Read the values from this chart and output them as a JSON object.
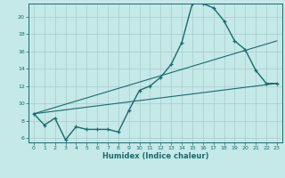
{
  "xlabel": "Humidex (Indice chaleur)",
  "bg_color": "#c5e8e8",
  "grid_color": "#a8cccc",
  "line_color": "#1a6b6b",
  "x_ticks": [
    0,
    1,
    2,
    3,
    4,
    5,
    6,
    7,
    8,
    9,
    10,
    11,
    12,
    13,
    14,
    15,
    16,
    17,
    18,
    19,
    20,
    21,
    22,
    23
  ],
  "y_ticks": [
    6,
    8,
    10,
    12,
    14,
    16,
    18,
    20
  ],
  "xlim": [
    -0.5,
    23.5
  ],
  "ylim": [
    5.5,
    21.5
  ],
  "main_x": [
    0,
    1,
    2,
    3,
    4,
    5,
    6,
    7,
    8,
    9,
    10,
    11,
    12,
    13,
    14,
    15,
    16,
    17,
    18,
    19,
    20,
    21,
    22,
    23
  ],
  "main_y": [
    8.8,
    7.5,
    8.3,
    5.8,
    7.3,
    7.0,
    7.0,
    7.0,
    6.7,
    9.2,
    11.5,
    12.0,
    13.0,
    14.5,
    17.0,
    21.5,
    21.5,
    21.0,
    19.5,
    17.2,
    16.2,
    13.8,
    12.3,
    12.3
  ],
  "trend1_x0": 0,
  "trend1_y0": 8.8,
  "trend1_x1": 23,
  "trend1_y1": 17.2,
  "trend2_x0": 0,
  "trend2_y0": 8.8,
  "trend2_x1": 23,
  "trend2_y1": 12.3
}
